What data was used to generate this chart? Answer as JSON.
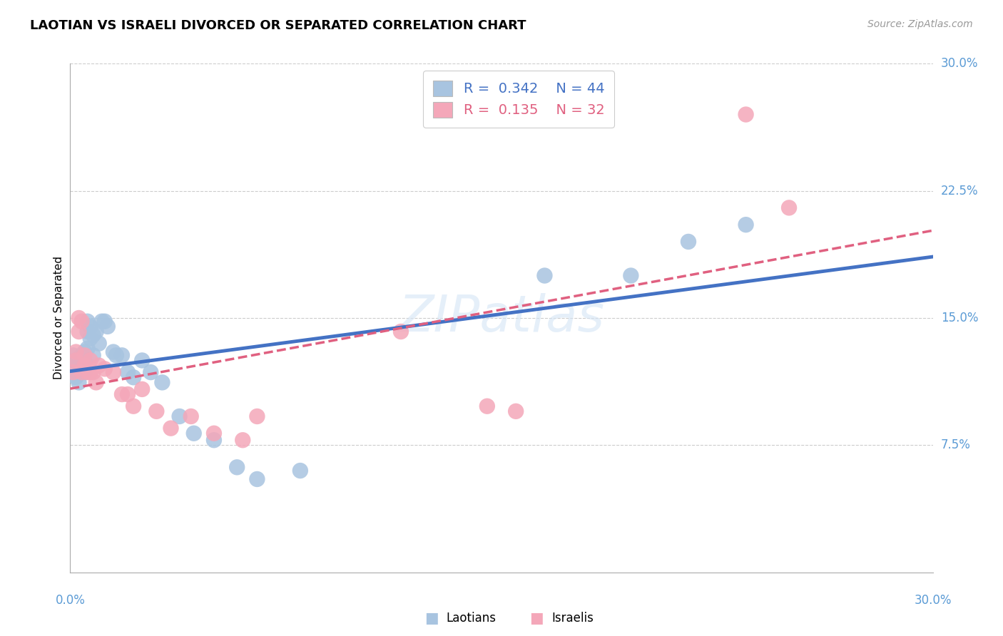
{
  "title": "LAOTIAN VS ISRAELI DIVORCED OR SEPARATED CORRELATION CHART",
  "source": "Source: ZipAtlas.com",
  "ylabel": "Divorced or Separated",
  "r_laotian": 0.342,
  "n_laotian": 44,
  "r_israeli": 0.135,
  "n_israeli": 32,
  "laotian_color": "#a8c4e0",
  "israeli_color": "#f4a7b9",
  "laotian_line_color": "#4472c4",
  "israeli_line_color": "#e06080",
  "axis_label_color": "#5b9bd5",
  "grid_color": "#cccccc",
  "xlim": [
    0.0,
    0.3
  ],
  "ylim": [
    0.0,
    0.3
  ],
  "ytick_vals": [
    0.075,
    0.15,
    0.225,
    0.3
  ],
  "ytick_labels": [
    "7.5%",
    "15.0%",
    "22.5%",
    "30.0%"
  ],
  "laotians_x": [
    0.001,
    0.001,
    0.002,
    0.002,
    0.002,
    0.003,
    0.003,
    0.003,
    0.004,
    0.004,
    0.004,
    0.005,
    0.005,
    0.005,
    0.006,
    0.006,
    0.006,
    0.007,
    0.007,
    0.008,
    0.008,
    0.009,
    0.01,
    0.011,
    0.012,
    0.013,
    0.015,
    0.016,
    0.018,
    0.02,
    0.022,
    0.025,
    0.028,
    0.032,
    0.038,
    0.043,
    0.05,
    0.058,
    0.065,
    0.08,
    0.165,
    0.195,
    0.215,
    0.235
  ],
  "laotians_y": [
    0.128,
    0.122,
    0.118,
    0.124,
    0.115,
    0.122,
    0.118,
    0.112,
    0.128,
    0.125,
    0.12,
    0.118,
    0.13,
    0.125,
    0.148,
    0.142,
    0.132,
    0.138,
    0.145,
    0.14,
    0.128,
    0.142,
    0.135,
    0.148,
    0.148,
    0.145,
    0.13,
    0.128,
    0.128,
    0.118,
    0.115,
    0.125,
    0.118,
    0.112,
    0.092,
    0.082,
    0.078,
    0.062,
    0.055,
    0.06,
    0.175,
    0.175,
    0.195,
    0.205
  ],
  "israelis_x": [
    0.001,
    0.002,
    0.002,
    0.003,
    0.003,
    0.004,
    0.004,
    0.005,
    0.005,
    0.006,
    0.007,
    0.007,
    0.008,
    0.009,
    0.01,
    0.012,
    0.015,
    0.018,
    0.02,
    0.022,
    0.025,
    0.03,
    0.035,
    0.042,
    0.05,
    0.06,
    0.065,
    0.115,
    0.145,
    0.155,
    0.235,
    0.25
  ],
  "israelis_y": [
    0.118,
    0.13,
    0.125,
    0.15,
    0.142,
    0.148,
    0.118,
    0.122,
    0.128,
    0.118,
    0.118,
    0.125,
    0.118,
    0.112,
    0.122,
    0.12,
    0.118,
    0.105,
    0.105,
    0.098,
    0.108,
    0.095,
    0.085,
    0.092,
    0.082,
    0.078,
    0.092,
    0.142,
    0.098,
    0.095,
    0.27,
    0.215
  ]
}
